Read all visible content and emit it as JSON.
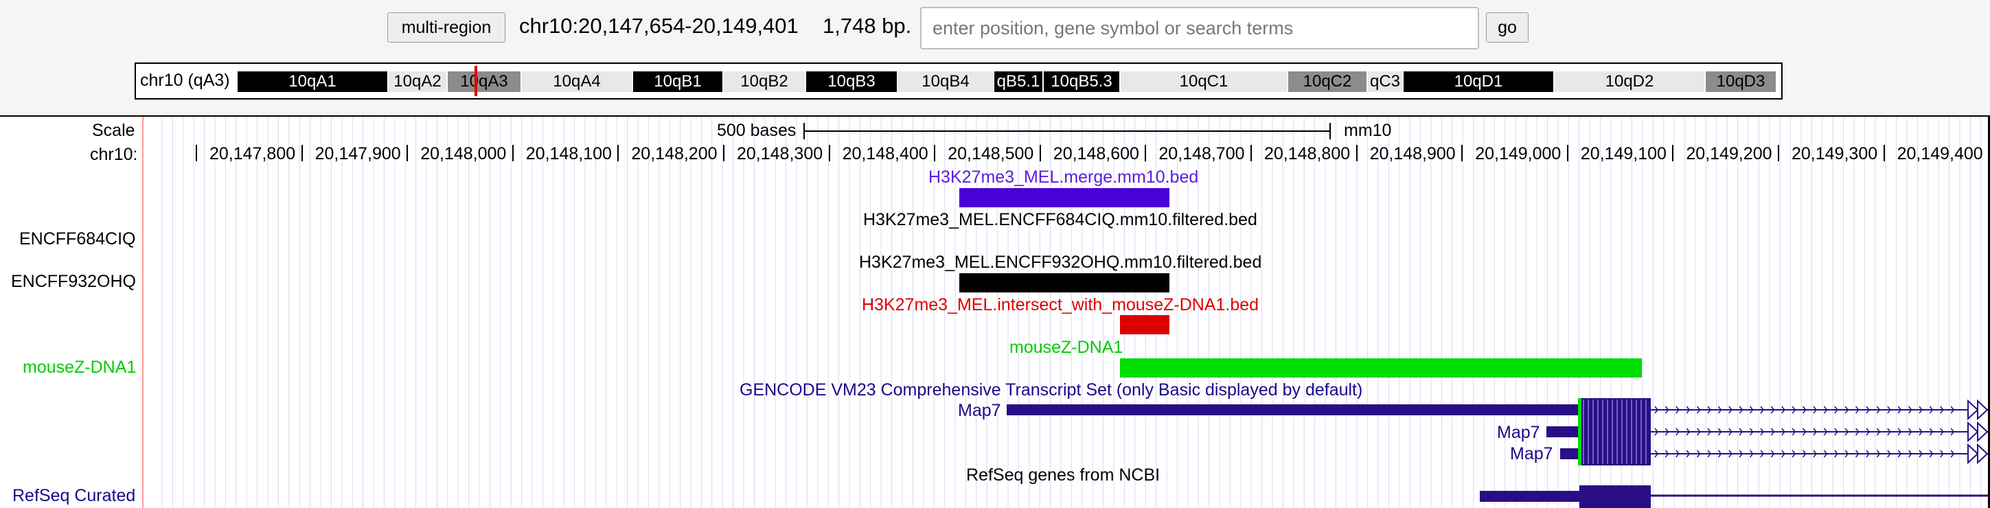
{
  "nav": {
    "multi_region_label": "multi-region",
    "position": "chr10:20,147,654-20,149,401",
    "size": "1,748 bp.",
    "search_placeholder": "enter position, gene symbol or search terms",
    "go_label": "go"
  },
  "ideogram": {
    "label": "chr10 (qA3)",
    "bands": [
      {
        "name": "10qA1",
        "shade": "black"
      },
      {
        "name": "10qA2",
        "shade": "white"
      },
      {
        "name": "10qA3",
        "shade": "gray"
      },
      {
        "name": "10qA4",
        "shade": "white"
      },
      {
        "name": "10qB1",
        "shade": "black"
      },
      {
        "name": "10qB2",
        "shade": "white"
      },
      {
        "name": "10qB3",
        "shade": "black"
      },
      {
        "name": "10qB4",
        "shade": "white"
      },
      {
        "name": "qB5.1",
        "shade": "black"
      },
      {
        "name": "10qB5.3",
        "shade": "black"
      },
      {
        "name": "10qC1",
        "shade": "white"
      },
      {
        "name": "10qC2",
        "shade": "gray"
      },
      {
        "name": "qC3",
        "shade": "white"
      },
      {
        "name": "10qD1",
        "shade": "black"
      },
      {
        "name": "10qD2",
        "shade": "white"
      },
      {
        "name": "10qD3",
        "shade": "gray"
      }
    ]
  },
  "ruler": {
    "scale_label": "Scale",
    "chrom_label": "chr10:",
    "scale_bar_text": "500 bases",
    "assembly": "mm10",
    "ticks": [
      "20,147,800",
      "20,147,900",
      "20,148,000",
      "20,148,100",
      "20,148,200",
      "20,148,300",
      "20,148,400",
      "20,148,500",
      "20,148,600",
      "20,148,700",
      "20,148,800",
      "20,148,900",
      "20,149,000",
      "20,149,100",
      "20,149,200",
      "20,149,300",
      "20,149,400"
    ]
  },
  "side_labels": {
    "encff684": "ENCFF684CIQ",
    "encff932": "ENCFF932OHQ",
    "zdna": "mouseZ-DNA1",
    "refseq": "RefSeq Curated"
  },
  "tracks": {
    "merge_title": "H3K27me3_MEL.merge.mm10.bed",
    "encff684_title": "H3K27me3_MEL.ENCFF684CIQ.mm10.filtered.bed",
    "encff932_title": "H3K27me3_MEL.ENCFF932OHQ.mm10.filtered.bed",
    "intersect_title": "H3K27me3_MEL.intersect_with_mouseZ-DNA1.bed",
    "zdna_title": "mouseZ-DNA1",
    "gencode_title": "GENCODE VM23 Comprehensive Transcript Set (only Basic displayed by default)",
    "gene1": "Map7",
    "gene2": "Map7",
    "gene3": "Map7",
    "refseq_title": "RefSeq genes from NCBI"
  },
  "colors": {
    "merge": "#4a00d6",
    "encff932": "#000000",
    "intersect": "#dd0000",
    "zdna": "#00dd00",
    "gene": "#2a0e85",
    "label_blue": "#1a0a8a"
  }
}
